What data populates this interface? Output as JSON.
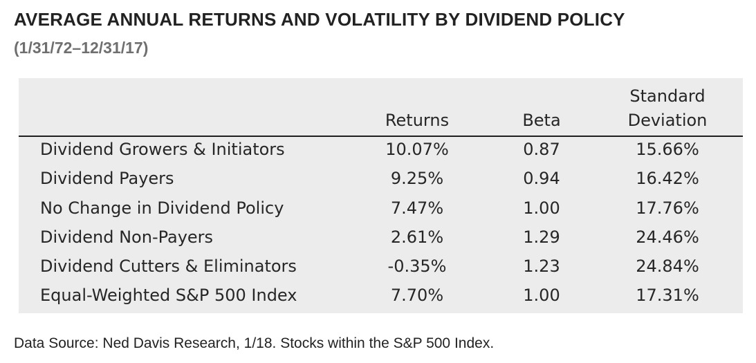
{
  "title": "AVERAGE ANNUAL RETURNS AND VOLATILITY BY DIVIDEND POLICY",
  "subtitle": "(1/31/72–12/31/17)",
  "footer": "Data Source: Ned Davis Research, 1/18. Stocks within the S&P 500 Index.",
  "chart_data": {
    "type": "table",
    "columns": [
      "",
      "Returns",
      "Beta",
      "Standard Deviation"
    ],
    "header": {
      "returns": "Returns",
      "beta": "Beta",
      "sd_line1": "Standard",
      "sd_line2": "Deviation"
    },
    "rows": [
      {
        "label": "Dividend Growers & Initiators",
        "returns": "10.07%",
        "beta": "0.87",
        "sd": "15.66%"
      },
      {
        "label": "Dividend Payers",
        "returns": "9.25%",
        "beta": "0.94",
        "sd": "16.42%"
      },
      {
        "label": "No Change in Dividend Policy",
        "returns": "7.47%",
        "beta": "1.00",
        "sd": "17.76%"
      },
      {
        "label": "Dividend Non-Payers",
        "returns": "2.61%",
        "beta": "1.29",
        "sd": "24.46%"
      },
      {
        "label": "Dividend Cutters & Eliminators",
        "returns": "-0.35%",
        "beta": "1.23",
        "sd": "24.84%"
      },
      {
        "label": "Equal-Weighted S&P 500 Index",
        "returns": "7.70%",
        "beta": "1.00",
        "sd": "17.31%"
      }
    ]
  }
}
